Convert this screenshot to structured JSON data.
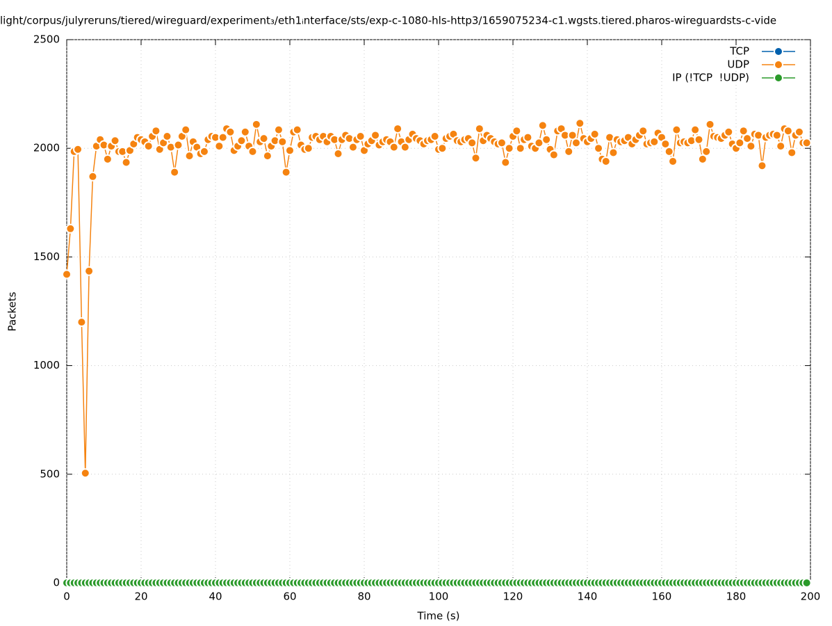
{
  "chart_data": {
    "type": "line",
    "title": "light/corpus/julyreruns/tiered/wireguard/experiment₃/eth1ᵢnterface/sts/exp-c-1080-hls-http3/1659075234-c1.wgsts.tiered.pharos-wireguardsts-c-vide",
    "x_label": "Time (s)",
    "y_label": "Packets",
    "x": [
      0,
      1,
      2,
      3,
      4,
      5,
      6,
      7,
      8,
      9,
      10,
      11,
      12,
      13,
      14,
      15,
      16,
      17,
      18,
      19,
      20,
      21,
      22,
      23,
      24,
      25,
      26,
      27,
      28,
      29,
      30,
      31,
      32,
      33,
      34,
      35,
      36,
      37,
      38,
      39,
      40,
      41,
      42,
      43,
      44,
      45,
      46,
      47,
      48,
      49,
      50,
      51,
      52,
      53,
      54,
      55,
      56,
      57,
      58,
      59,
      60,
      61,
      62,
      63,
      64,
      65,
      66,
      67,
      68,
      69,
      70,
      71,
      72,
      73,
      74,
      75,
      76,
      77,
      78,
      79,
      80,
      81,
      82,
      83,
      84,
      85,
      86,
      87,
      88,
      89,
      90,
      91,
      92,
      93,
      94,
      95,
      96,
      97,
      98,
      99,
      100,
      101,
      102,
      103,
      104,
      105,
      106,
      107,
      108,
      109,
      110,
      111,
      112,
      113,
      114,
      115,
      116,
      117,
      118,
      119,
      120,
      121,
      122,
      123,
      124,
      125,
      126,
      127,
      128,
      129,
      130,
      131,
      132,
      133,
      134,
      135,
      136,
      137,
      138,
      139,
      140,
      141,
      142,
      143,
      144,
      145,
      146,
      147,
      148,
      149,
      150,
      151,
      152,
      153,
      154,
      155,
      156,
      157,
      158,
      159,
      160,
      161,
      162,
      163,
      164,
      165,
      166,
      167,
      168,
      169,
      170,
      171,
      172,
      173,
      174,
      175,
      176,
      177,
      178,
      179,
      180,
      181,
      182,
      183,
      184,
      185,
      186,
      187,
      188,
      189,
      190,
      191,
      192,
      193,
      194,
      195,
      196,
      197,
      198,
      199
    ],
    "series": [
      {
        "name": "TCP",
        "color": "#0060ad",
        "values": [
          0,
          0,
          0,
          0,
          0,
          0,
          0,
          0,
          0,
          0,
          0,
          0,
          0,
          0,
          0,
          0,
          0,
          0,
          0,
          0,
          0,
          0,
          0,
          0,
          0,
          0,
          0,
          0,
          0,
          0,
          0,
          0,
          0,
          0,
          0,
          0,
          0,
          0,
          0,
          0,
          0,
          0,
          0,
          0,
          0,
          0,
          0,
          0,
          0,
          0,
          0,
          0,
          0,
          0,
          0,
          0,
          0,
          0,
          0,
          0,
          0,
          0,
          0,
          0,
          0,
          0,
          0,
          0,
          0,
          0,
          0,
          0,
          0,
          0,
          0,
          0,
          0,
          0,
          0,
          0,
          0,
          0,
          0,
          0,
          0,
          0,
          0,
          0,
          0,
          0,
          0,
          0,
          0,
          0,
          0,
          0,
          0,
          0,
          0,
          0,
          0,
          0,
          0,
          0,
          0,
          0,
          0,
          0,
          0,
          0,
          0,
          0,
          0,
          0,
          0,
          0,
          0,
          0,
          0,
          0,
          0,
          0,
          0,
          0,
          0,
          0,
          0,
          0,
          0,
          0,
          0,
          0,
          0,
          0,
          0,
          0,
          0,
          0,
          0,
          0,
          0,
          0,
          0,
          0,
          0,
          0,
          0,
          0,
          0,
          0,
          0,
          0,
          0,
          0,
          0,
          0,
          0,
          0,
          0,
          0,
          0,
          0,
          0,
          0,
          0,
          0,
          0,
          0,
          0,
          0,
          0,
          0,
          0,
          0,
          0,
          0,
          0,
          0,
          0,
          0,
          0,
          0,
          0,
          0,
          0,
          0,
          0,
          0,
          0,
          0,
          0,
          0,
          0,
          0,
          0,
          0,
          0,
          0,
          0,
          0
        ]
      },
      {
        "name": "UDP",
        "color": "#f58310",
        "values": [
          1420,
          1630,
          1985,
          1995,
          1200,
          505,
          1435,
          1870,
          2010,
          2040,
          2015,
          1950,
          2010,
          2035,
          1985,
          1985,
          1935,
          1990,
          2020,
          2050,
          2040,
          2030,
          2010,
          2055,
          2080,
          1995,
          2025,
          2055,
          2005,
          1890,
          2015,
          2055,
          2085,
          1965,
          2030,
          2005,
          1975,
          1985,
          2040,
          2055,
          2050,
          2010,
          2050,
          2090,
          2075,
          1990,
          2010,
          2035,
          2075,
          2010,
          1985,
          2110,
          2030,
          2045,
          1965,
          2010,
          2035,
          2085,
          2030,
          1890,
          1990,
          2075,
          2085,
          2015,
          1995,
          2000,
          2050,
          2055,
          2040,
          2055,
          2030,
          2055,
          2040,
          1975,
          2040,
          2060,
          2045,
          2005,
          2040,
          2055,
          1990,
          2020,
          2035,
          2060,
          2015,
          2030,
          2040,
          2030,
          2005,
          2090,
          2030,
          2005,
          2040,
          2065,
          2045,
          2035,
          2020,
          2035,
          2040,
          2055,
          1995,
          2000,
          2045,
          2055,
          2065,
          2035,
          2030,
          2040,
          2045,
          2025,
          1955,
          2090,
          2035,
          2060,
          2045,
          2030,
          2020,
          2025,
          1935,
          2000,
          2055,
          2080,
          2000,
          2040,
          2050,
          2010,
          2000,
          2025,
          2105,
          2040,
          1995,
          1970,
          2080,
          2090,
          2060,
          1985,
          2060,
          2025,
          2115,
          2045,
          2030,
          2045,
          2065,
          2000,
          1950,
          1940,
          2050,
          1980,
          2040,
          2030,
          2035,
          2050,
          2020,
          2040,
          2060,
          2080,
          2020,
          2025,
          2030,
          2070,
          2050,
          2020,
          1985,
          1940,
          2085,
          2025,
          2030,
          2025,
          2035,
          2085,
          2040,
          1950,
          1985,
          2110,
          2055,
          2050,
          2045,
          2060,
          2075,
          2020,
          2000,
          2025,
          2080,
          2045,
          2010,
          2065,
          2060,
          1920,
          2050,
          2060,
          2065,
          2060,
          2010,
          2090,
          2080,
          1980,
          2060,
          2075,
          2025,
          2025
        ]
      },
      {
        "name": "IP (!TCP  !UDP)",
        "color": "#2a9a2a",
        "values": [
          0,
          0,
          0,
          0,
          0,
          0,
          0,
          0,
          0,
          0,
          0,
          0,
          0,
          0,
          0,
          0,
          0,
          0,
          0,
          0,
          0,
          0,
          0,
          0,
          0,
          0,
          0,
          0,
          0,
          0,
          0,
          0,
          0,
          0,
          0,
          0,
          0,
          0,
          0,
          0,
          0,
          0,
          0,
          0,
          0,
          0,
          0,
          0,
          0,
          0,
          0,
          0,
          0,
          0,
          0,
          0,
          0,
          0,
          0,
          0,
          0,
          0,
          0,
          0,
          0,
          0,
          0,
          0,
          0,
          0,
          0,
          0,
          0,
          0,
          0,
          0,
          0,
          0,
          0,
          0,
          0,
          0,
          0,
          0,
          0,
          0,
          0,
          0,
          0,
          0,
          0,
          0,
          0,
          0,
          0,
          0,
          0,
          0,
          0,
          0,
          0,
          0,
          0,
          0,
          0,
          0,
          0,
          0,
          0,
          0,
          0,
          0,
          0,
          0,
          0,
          0,
          0,
          0,
          0,
          0,
          0,
          0,
          0,
          0,
          0,
          0,
          0,
          0,
          0,
          0,
          0,
          0,
          0,
          0,
          0,
          0,
          0,
          0,
          0,
          0,
          0,
          0,
          0,
          0,
          0,
          0,
          0,
          0,
          0,
          0,
          0,
          0,
          0,
          0,
          0,
          0,
          0,
          0,
          0,
          0,
          0,
          0,
          0,
          0,
          0,
          0,
          0,
          0,
          0,
          0,
          0,
          0,
          0,
          0,
          0,
          0,
          0,
          0,
          0,
          0,
          0,
          0,
          0,
          0,
          0,
          0,
          0,
          0,
          0,
          0,
          0,
          0,
          0,
          0,
          0,
          0,
          0,
          0,
          0,
          0
        ]
      }
    ],
    "xlim": [
      0,
      200
    ],
    "xticks": [
      0,
      20,
      40,
      60,
      80,
      100,
      120,
      140,
      160,
      180,
      200
    ],
    "ylim": [
      0,
      2500
    ],
    "yticks": [
      0,
      500,
      1000,
      1500,
      2000,
      2500
    ],
    "grid": true,
    "legend": "top-right"
  }
}
